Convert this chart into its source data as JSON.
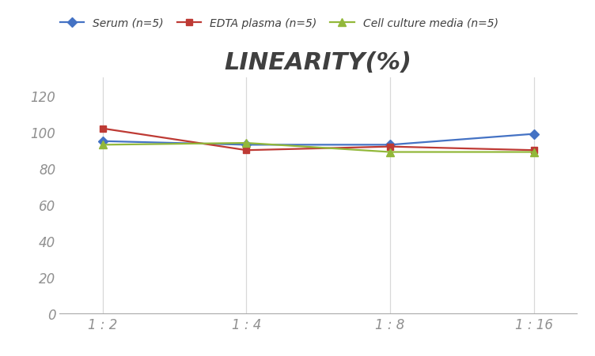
{
  "title": "LINEARITY(%)",
  "x_labels": [
    "1 : 2",
    "1 : 4",
    "1 : 8",
    "1 : 16"
  ],
  "x_positions": [
    0,
    1,
    2,
    3
  ],
  "series": [
    {
      "label": "Serum (n=5)",
      "values": [
        95,
        93,
        93,
        99
      ],
      "color": "#4472C4",
      "marker": "D",
      "marker_size": 6,
      "linewidth": 1.6
    },
    {
      "label": "EDTA plasma (n=5)",
      "values": [
        102,
        90,
        92,
        90
      ],
      "color": "#BE3A34",
      "marker": "s",
      "marker_size": 6,
      "linewidth": 1.6
    },
    {
      "label": "Cell culture media (n=5)",
      "values": [
        93,
        94,
        89,
        89
      ],
      "color": "#92B83A",
      "marker": "^",
      "marker_size": 7,
      "linewidth": 1.6
    }
  ],
  "ylim": [
    0,
    130
  ],
  "yticks": [
    0,
    20,
    40,
    60,
    80,
    100,
    120
  ],
  "grid_color": "#D8D8D8",
  "background_color": "#FFFFFF",
  "title_fontsize": 22,
  "title_fontstyle": "italic",
  "title_fontweight": "bold",
  "title_color": "#404040",
  "legend_fontsize": 10,
  "tick_fontsize": 12,
  "tick_color": "#909090"
}
